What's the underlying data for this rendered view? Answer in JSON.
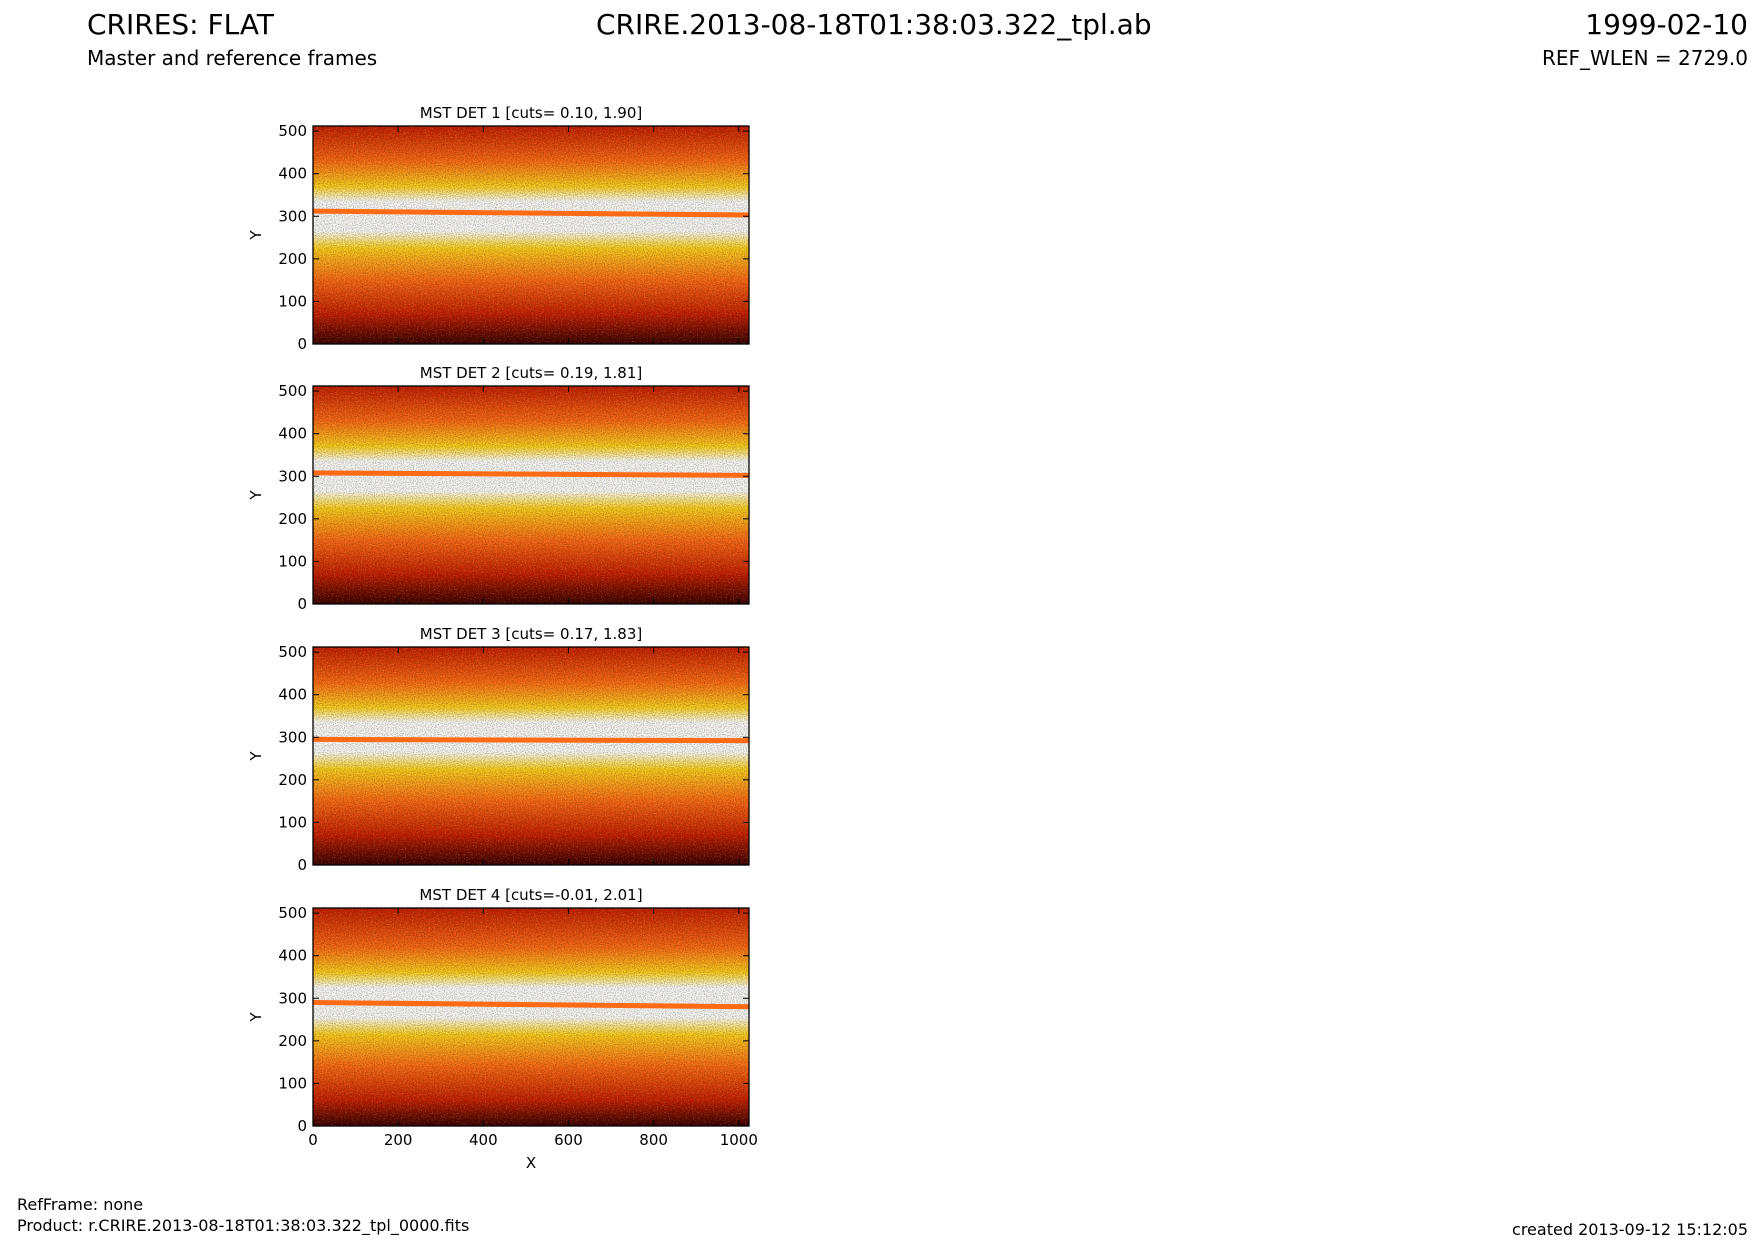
{
  "header": {
    "instrument_title": "CRIRES: FLAT",
    "file_title": "CRIRE.2013-08-18T01:38:03.322_tpl.ab",
    "date": "1999-02-10",
    "subtitle": "Master and reference frames",
    "ref_wlen": "REF_WLEN = 2729.0"
  },
  "footer": {
    "refframe": "RefFrame: none",
    "product": "Product: r.CRIRE.2013-08-18T01:38:03.322_tpl_0000.fits",
    "created": "created 2013-09-12 15:12:05"
  },
  "colors": {
    "colormap": "hot",
    "dark": "#3a0000",
    "red": "#c81e00",
    "orange": "#ff6a14",
    "yellow": "#ffd21e",
    "white": "#ffffff"
  },
  "chart_data": [
    {
      "type": "heatmap",
      "title": "MST DET 1 [cuts= 0.10, 1.90]",
      "cuts": [
        0.1,
        1.9
      ],
      "xlabel": "",
      "ylabel": "Y",
      "xlim": [
        0,
        1024
      ],
      "ylim": [
        0,
        512
      ],
      "x_ticks": [],
      "y_ticks": [
        "0",
        "100",
        "200",
        "300",
        "400",
        "500"
      ],
      "bright_band_center_y": 300,
      "order_line_y": [
        312,
        303
      ]
    },
    {
      "type": "heatmap",
      "title": "MST DET 2 [cuts= 0.19, 1.81]",
      "cuts": [
        0.19,
        1.81
      ],
      "xlabel": "",
      "ylabel": "Y",
      "xlim": [
        0,
        1024
      ],
      "ylim": [
        0,
        512
      ],
      "x_ticks": [],
      "y_ticks": [
        "0",
        "100",
        "200",
        "300",
        "400",
        "500"
      ],
      "bright_band_center_y": 300,
      "order_line_y": [
        308,
        302
      ]
    },
    {
      "type": "heatmap",
      "title": "MST DET 3 [cuts= 0.17, 1.83]",
      "cuts": [
        0.17,
        1.83
      ],
      "xlabel": "",
      "ylabel": "Y",
      "xlim": [
        0,
        1024
      ],
      "ylim": [
        0,
        512
      ],
      "x_ticks": [],
      "y_ticks": [
        "0",
        "100",
        "200",
        "300",
        "400",
        "500"
      ],
      "bright_band_center_y": 300,
      "order_line_y": [
        295,
        292
      ]
    },
    {
      "type": "heatmap",
      "title": "MST DET 4 [cuts=-0.01, 2.01]",
      "cuts": [
        -0.01,
        2.01
      ],
      "xlabel": "X",
      "ylabel": "Y",
      "xlim": [
        0,
        1024
      ],
      "ylim": [
        0,
        512
      ],
      "x_ticks": [
        "0",
        "200",
        "400",
        "600",
        "800",
        "1000"
      ],
      "y_ticks": [
        "0",
        "100",
        "200",
        "300",
        "400",
        "500"
      ],
      "bright_band_center_y": 290,
      "order_line_y": [
        290,
        280
      ]
    }
  ]
}
